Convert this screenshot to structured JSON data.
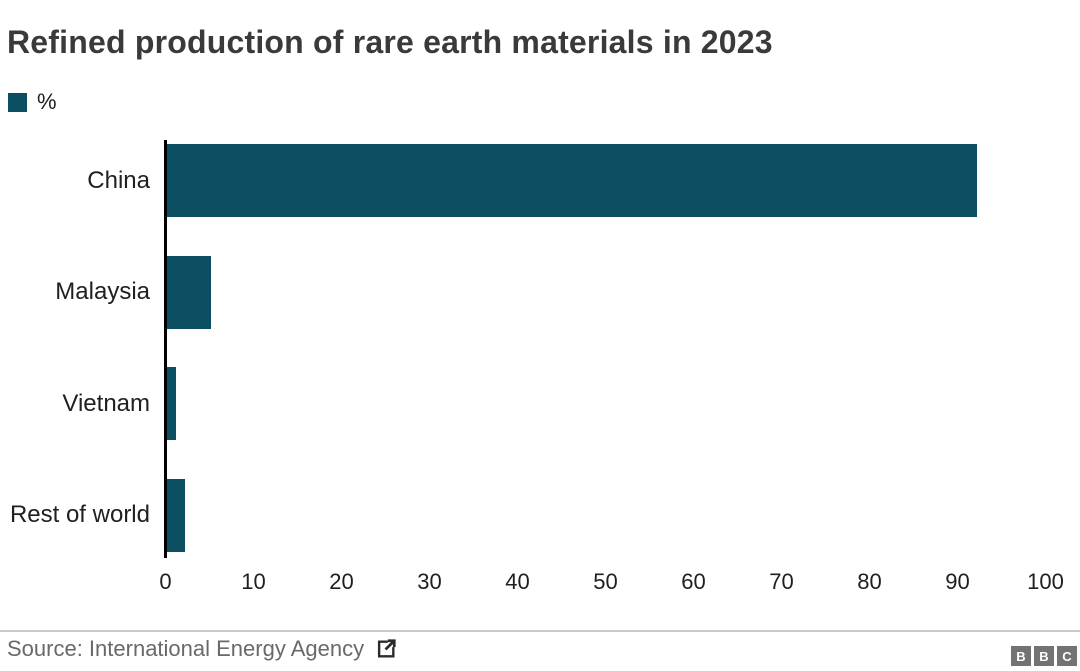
{
  "chart_data": {
    "type": "bar",
    "orientation": "horizontal",
    "title": "Refined production of rare earth materials in 2023",
    "legend_label": "%",
    "categories": [
      "China",
      "Malaysia",
      "Vietnam",
      "Rest of world"
    ],
    "values": [
      92,
      5,
      1,
      2
    ],
    "xlabel": "",
    "ylabel": "",
    "xlim": [
      0,
      100
    ],
    "x_ticks": [
      0,
      10,
      20,
      30,
      40,
      50,
      60,
      70,
      80,
      90,
      100
    ],
    "grid": false,
    "legend_position": "top-left"
  },
  "footer": {
    "source": "Source: International Energy Agency",
    "logo_letters": [
      "B",
      "B",
      "C"
    ]
  },
  "colors": {
    "accent": "#0b4e61",
    "title_text": "#3a3a3a",
    "label_text": "#202020",
    "source_text": "#696969",
    "divider": "#c9c9c9",
    "bbc_logo": "#737373",
    "axis": "#000000"
  }
}
